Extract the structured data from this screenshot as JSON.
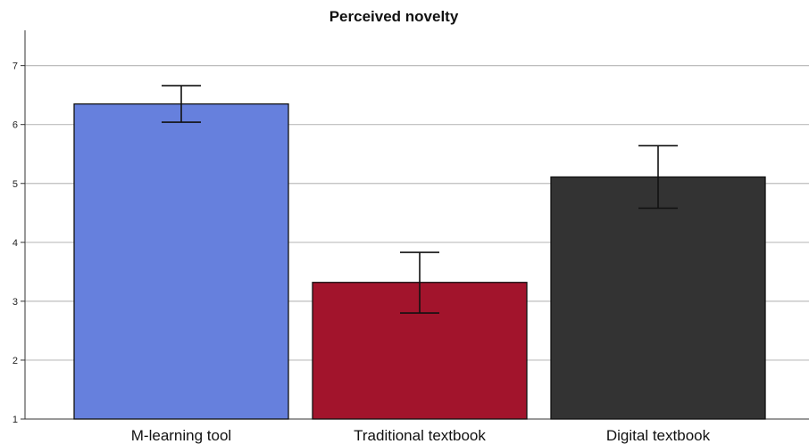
{
  "chart_data": {
    "type": "bar",
    "title": "Perceived novelty",
    "xlabel": "",
    "ylabel": "",
    "categories": [
      "M-learning tool",
      "Traditional textbook",
      "Digital textbook"
    ],
    "values": [
      6.35,
      3.32,
      5.11
    ],
    "error_low": [
      6.04,
      2.8,
      4.58
    ],
    "error_high": [
      6.66,
      3.83,
      5.64
    ],
    "colors": [
      "#6680dd",
      "#a2142c",
      "#333333"
    ],
    "ylim": [
      1,
      7.6
    ],
    "yticks": [
      1,
      2,
      3,
      4,
      5,
      6,
      7
    ],
    "grid": true,
    "legend": "none"
  }
}
